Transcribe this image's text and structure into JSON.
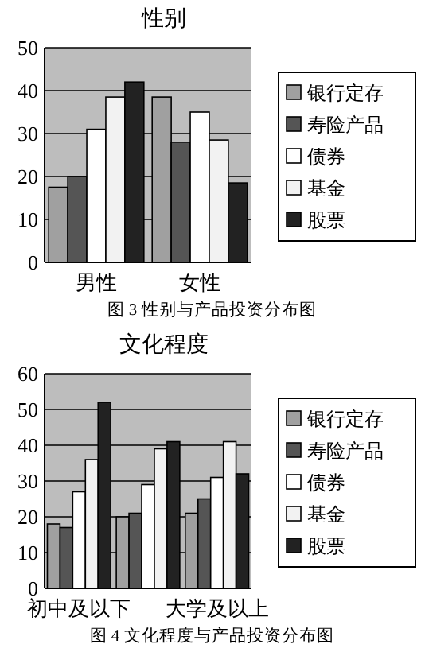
{
  "chart_data": [
    {
      "type": "bar",
      "title": "性别",
      "categories": [
        "男性",
        "女性"
      ],
      "series": [
        {
          "name": "银行定存",
          "color": "#a0a0a0",
          "values": [
            17.5,
            38.5
          ]
        },
        {
          "name": "寿险产品",
          "color": "#555555",
          "values": [
            20,
            28
          ]
        },
        {
          "name": "债券",
          "color": "#ffffff",
          "values": [
            31,
            35
          ]
        },
        {
          "name": "基金",
          "color": "#f2f2f2",
          "values": [
            38.5,
            28.5
          ]
        },
        {
          "name": "股票",
          "color": "#222222",
          "values": [
            42,
            18.5
          ]
        }
      ],
      "ylim": [
        0,
        50
      ],
      "yticks": [
        0,
        10,
        20,
        30,
        40,
        50
      ],
      "grid": "y",
      "legend": "right",
      "annotations": [
        "图 3 性别与产品投资分布图"
      ]
    },
    {
      "type": "bar",
      "title": "文化程度",
      "categories": [
        "初中及以下",
        null,
        "大学及以上"
      ],
      "series": [
        {
          "name": "银行定存",
          "color": "#a0a0a0",
          "values": [
            18,
            20,
            21
          ]
        },
        {
          "name": "寿险产品",
          "color": "#555555",
          "values": [
            17,
            21,
            25
          ]
        },
        {
          "name": "债券",
          "color": "#ffffff",
          "values": [
            27,
            29,
            31
          ]
        },
        {
          "name": "基金",
          "color": "#f2f2f2",
          "values": [
            36,
            39,
            41
          ]
        },
        {
          "name": "股票",
          "color": "#222222",
          "values": [
            52,
            41,
            32
          ]
        }
      ],
      "ylim": [
        0,
        60
      ],
      "yticks": [
        0,
        10,
        20,
        30,
        40,
        50,
        60
      ],
      "grid": "y",
      "legend": "right",
      "annotations": [
        "图 4 文化程度与产品投资分布图"
      ]
    }
  ]
}
